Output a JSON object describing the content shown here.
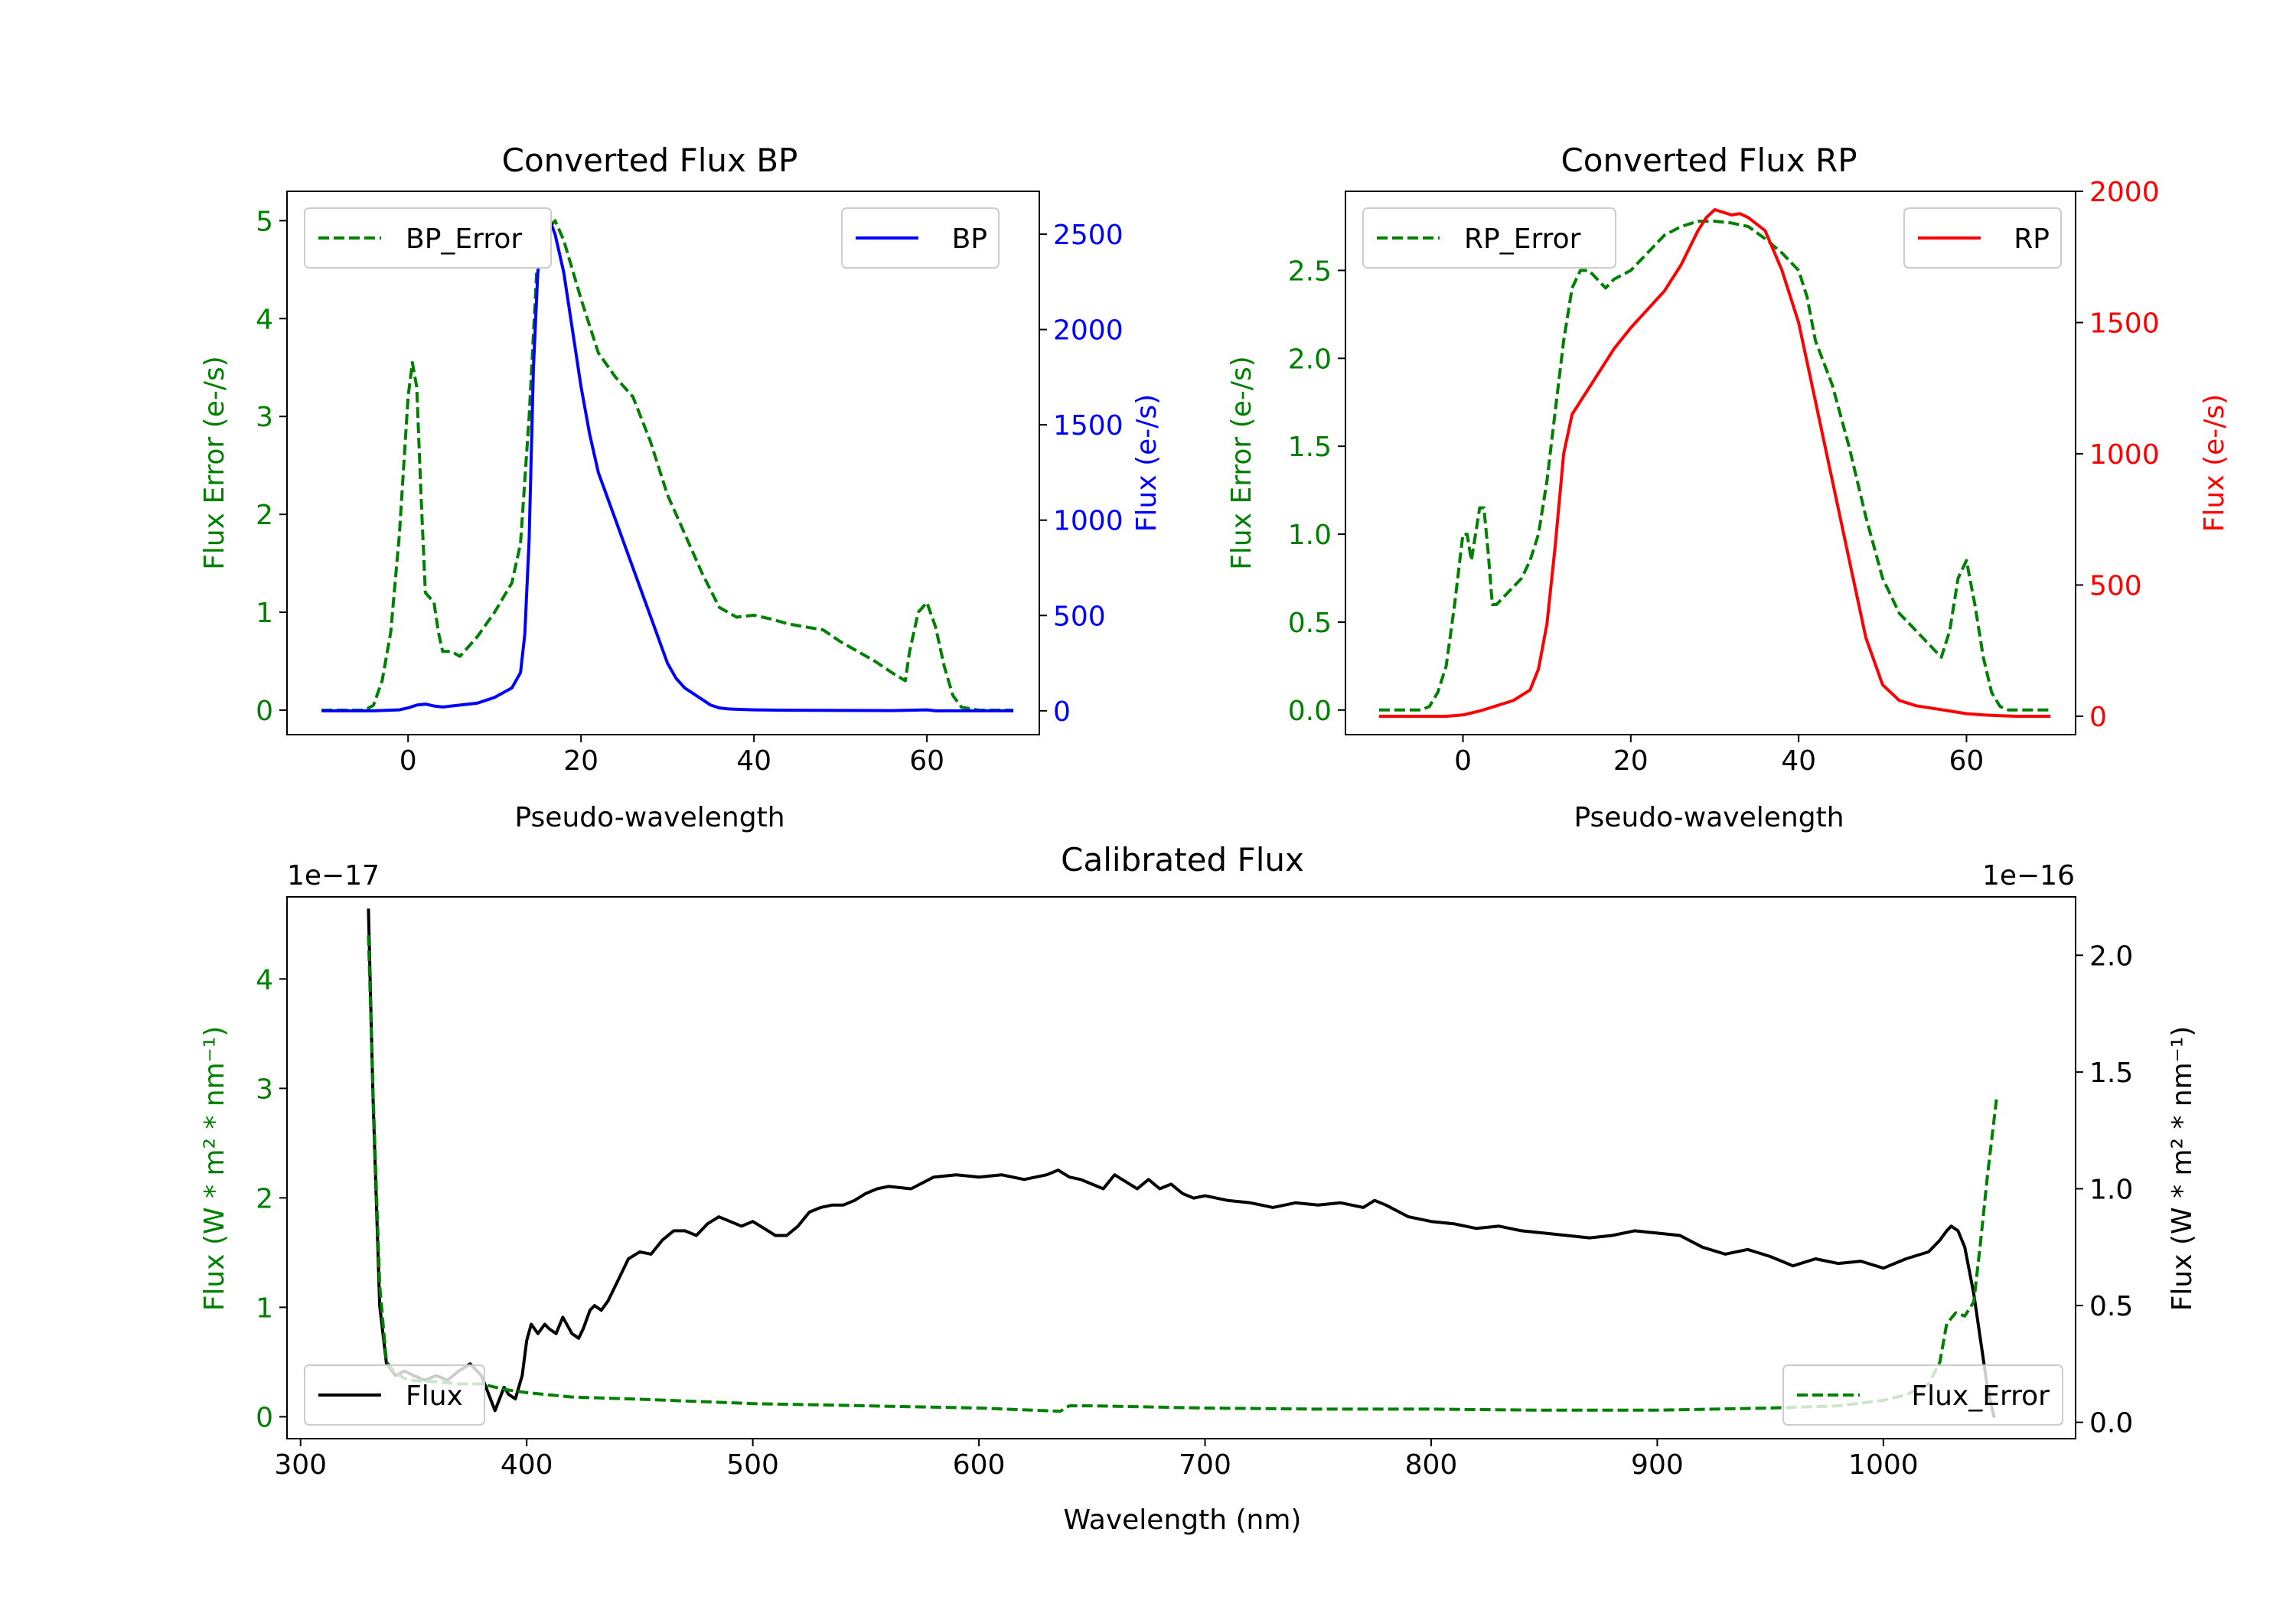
{
  "colors": {
    "bp": "#0000ff",
    "rp": "#ff0000",
    "error": "#008000",
    "flux": "#000000",
    "axis": "#000000",
    "legend_border": "#cccccc"
  },
  "chart_data": [
    {
      "id": "bp",
      "type": "line",
      "title": "Converted Flux BP",
      "xlabel": "Pseudo-wavelength",
      "ylabel_left": "Flux Error (e-/s)",
      "ylabel_right": "Flux (e-/s)",
      "xlim": [
        -14,
        73
      ],
      "xticks": [
        0,
        20,
        40,
        60
      ],
      "ylim_left": [
        -0.25,
        5.3
      ],
      "yticks_left": [
        0,
        1,
        2,
        3,
        4,
        5
      ],
      "ylim_right": [
        -125,
        2725
      ],
      "yticks_right": [
        0,
        500,
        1000,
        1500,
        2000,
        2500
      ],
      "legend_left": "BP_Error",
      "legend_right": "BP",
      "series": [
        {
          "name": "BP_Error",
          "axis": "left",
          "style": "dashed",
          "color": "#008000",
          "x": [
            -10,
            -5,
            -4,
            -3,
            -2,
            -1,
            0,
            0.5,
            1,
            1.5,
            2,
            3,
            3.5,
            4,
            5,
            6,
            7,
            8,
            10,
            12,
            13,
            14,
            15,
            16,
            17,
            18,
            20,
            22,
            24,
            26,
            28,
            30,
            32,
            34,
            36,
            38,
            40,
            42,
            44,
            46,
            48,
            50,
            52,
            54,
            56,
            57.5,
            58,
            59,
            60,
            61,
            62,
            63,
            64,
            66,
            70
          ],
          "values": [
            0,
            0,
            0.05,
            0.3,
            0.8,
            1.8,
            3.2,
            3.55,
            3.3,
            2.2,
            1.2,
            1.1,
            0.8,
            0.6,
            0.6,
            0.55,
            0.65,
            0.75,
            1.0,
            1.3,
            1.7,
            3.0,
            4.7,
            4.9,
            5.0,
            4.8,
            4.2,
            3.65,
            3.4,
            3.2,
            2.75,
            2.2,
            1.8,
            1.4,
            1.05,
            0.95,
            0.97,
            0.93,
            0.88,
            0.85,
            0.82,
            0.7,
            0.6,
            0.5,
            0.38,
            0.3,
            0.6,
            1.0,
            1.1,
            0.85,
            0.45,
            0.15,
            0.03,
            0,
            0
          ]
        },
        {
          "name": "BP",
          "axis": "right",
          "style": "solid",
          "color": "#0000ff",
          "x": [
            -10,
            -4,
            -1,
            0,
            1,
            2,
            3,
            4,
            6,
            8,
            10,
            12,
            13,
            13.5,
            14,
            14.5,
            15,
            15.5,
            16,
            17,
            18,
            19,
            20,
            21,
            22,
            24,
            26,
            28,
            30,
            31,
            32,
            34,
            35,
            36,
            37,
            38,
            40,
            44,
            50,
            56,
            60,
            61,
            62,
            70
          ],
          "values": [
            0,
            0,
            5,
            15,
            30,
            35,
            25,
            20,
            30,
            40,
            70,
            120,
            200,
            400,
            900,
            1800,
            2300,
            2520,
            2620,
            2500,
            2300,
            2000,
            1700,
            1450,
            1250,
            1000,
            750,
            500,
            250,
            170,
            120,
            60,
            30,
            15,
            10,
            8,
            5,
            3,
            2,
            1,
            5,
            0,
            0,
            0
          ]
        }
      ]
    },
    {
      "id": "rp",
      "type": "line",
      "title": "Converted Flux RP",
      "xlabel": "Pseudo-wavelength",
      "ylabel_left": "Flux Error (e-/s)",
      "ylabel_right": "Flux (e-/s)",
      "xlim": [
        -14,
        73
      ],
      "xticks": [
        0,
        20,
        40,
        60
      ],
      "ylim_left": [
        -0.14,
        2.95
      ],
      "yticks_left": [
        0.0,
        0.5,
        1.0,
        1.5,
        2.0,
        2.5
      ],
      "ylim_right": [
        -70,
        2000
      ],
      "yticks_right": [
        0,
        500,
        1000,
        1500,
        2000
      ],
      "legend_left": "RP_Error",
      "legend_right": "RP",
      "series": [
        {
          "name": "RP_Error",
          "axis": "left",
          "style": "dashed",
          "color": "#008000",
          "x": [
            -10,
            -5,
            -4,
            -3,
            -2,
            -1,
            0,
            0.5,
            1,
            1.5,
            2,
            2.5,
            3,
            3.5,
            4,
            5,
            6,
            7,
            8,
            9,
            10,
            11,
            12,
            13,
            14,
            15,
            16,
            17,
            18,
            20,
            22,
            24,
            26,
            28,
            30,
            32,
            34,
            36,
            38,
            40,
            41,
            42,
            44,
            46,
            48,
            50,
            52,
            54,
            56,
            57,
            58,
            59,
            60,
            61,
            62,
            63,
            64,
            65,
            66,
            70
          ],
          "values": [
            0,
            0,
            0.02,
            0.1,
            0.25,
            0.6,
            1.0,
            1.0,
            0.85,
            1.0,
            1.15,
            1.15,
            0.9,
            0.6,
            0.6,
            0.65,
            0.7,
            0.75,
            0.85,
            1.0,
            1.3,
            1.7,
            2.1,
            2.4,
            2.5,
            2.5,
            2.45,
            2.4,
            2.45,
            2.5,
            2.6,
            2.7,
            2.75,
            2.78,
            2.78,
            2.77,
            2.75,
            2.68,
            2.6,
            2.5,
            2.35,
            2.1,
            1.85,
            1.5,
            1.1,
            0.75,
            0.55,
            0.45,
            0.35,
            0.3,
            0.45,
            0.75,
            0.85,
            0.6,
            0.3,
            0.1,
            0.02,
            0,
            0,
            0
          ]
        },
        {
          "name": "RP",
          "axis": "right",
          "style": "solid",
          "color": "#ff0000",
          "x": [
            -10,
            -2,
            0,
            2,
            4,
            6,
            8,
            9,
            10,
            11,
            12,
            13,
            14,
            16,
            18,
            20,
            22,
            24,
            26,
            28,
            29,
            30,
            31,
            32,
            33,
            34,
            36,
            38,
            40,
            42,
            44,
            46,
            48,
            50,
            52,
            54,
            56,
            58,
            60,
            62,
            64,
            66,
            70
          ],
          "values": [
            0,
            0,
            5,
            20,
            40,
            60,
            100,
            180,
            350,
            650,
            1000,
            1150,
            1200,
            1300,
            1400,
            1480,
            1550,
            1620,
            1720,
            1850,
            1900,
            1930,
            1920,
            1910,
            1915,
            1900,
            1850,
            1700,
            1500,
            1200,
            900,
            600,
            300,
            120,
            60,
            40,
            30,
            20,
            10,
            5,
            2,
            0,
            0
          ]
        }
      ]
    },
    {
      "id": "calibrated",
      "type": "line",
      "title": "Calibrated Flux",
      "xlabel": "Wavelength (nm)",
      "ylabel_left": "Flux (W * m² * nm⁻¹)",
      "ylabel_right": "Flux (W * m² * nm⁻¹)",
      "offset_left": "1e−17",
      "offset_right": "1e−16",
      "xlim": [
        294,
        1085
      ],
      "xticks": [
        300,
        400,
        500,
        600,
        700,
        800,
        900,
        1000
      ],
      "ylim_left": [
        -0.2,
        4.75
      ],
      "yticks_left": [
        0,
        1,
        2,
        3,
        4
      ],
      "ylim_right": [
        -0.07,
        2.25
      ],
      "yticks_right": [
        0.0,
        0.5,
        1.0,
        1.5,
        2.0
      ],
      "legend_left": "Flux",
      "legend_right": "Flux_Error",
      "series": [
        {
          "name": "Flux",
          "axis": "right",
          "style": "solid",
          "color": "#000000",
          "x": [
            330,
            332,
            335,
            338,
            342,
            346,
            350,
            355,
            360,
            365,
            370,
            375,
            380,
            382,
            384,
            386,
            388,
            390,
            392,
            395,
            398,
            400,
            402,
            405,
            408,
            410,
            413,
            416,
            420,
            423,
            425,
            428,
            430,
            433,
            436,
            440,
            445,
            450,
            455,
            460,
            465,
            470,
            475,
            480,
            485,
            490,
            495,
            500,
            505,
            510,
            515,
            520,
            525,
            530,
            535,
            540,
            545,
            550,
            555,
            560,
            570,
            580,
            590,
            600,
            610,
            620,
            630,
            635,
            640,
            645,
            650,
            655,
            660,
            665,
            670,
            675,
            680,
            685,
            690,
            695,
            700,
            710,
            720,
            730,
            740,
            750,
            760,
            770,
            775,
            780,
            790,
            800,
            810,
            820,
            830,
            840,
            850,
            860,
            870,
            880,
            890,
            900,
            910,
            920,
            930,
            940,
            950,
            960,
            970,
            980,
            990,
            1000,
            1010,
            1020,
            1025,
            1028,
            1030,
            1033,
            1036,
            1040,
            1043,
            1046,
            1049
          ],
          "values": [
            2.2,
            1.4,
            0.5,
            0.25,
            0.2,
            0.22,
            0.2,
            0.18,
            0.2,
            0.18,
            0.22,
            0.25,
            0.2,
            0.15,
            0.1,
            0.05,
            0.1,
            0.15,
            0.12,
            0.1,
            0.2,
            0.35,
            0.42,
            0.38,
            0.42,
            0.4,
            0.38,
            0.45,
            0.38,
            0.36,
            0.4,
            0.48,
            0.5,
            0.48,
            0.52,
            0.6,
            0.7,
            0.73,
            0.72,
            0.78,
            0.82,
            0.82,
            0.8,
            0.85,
            0.88,
            0.86,
            0.84,
            0.86,
            0.83,
            0.8,
            0.8,
            0.84,
            0.9,
            0.92,
            0.93,
            0.93,
            0.95,
            0.98,
            1.0,
            1.01,
            1.0,
            1.05,
            1.06,
            1.05,
            1.06,
            1.04,
            1.06,
            1.08,
            1.05,
            1.04,
            1.02,
            1.0,
            1.06,
            1.03,
            1.0,
            1.04,
            1.0,
            1.02,
            0.98,
            0.96,
            0.97,
            0.95,
            0.94,
            0.92,
            0.94,
            0.93,
            0.94,
            0.92,
            0.95,
            0.93,
            0.88,
            0.86,
            0.85,
            0.83,
            0.84,
            0.82,
            0.81,
            0.8,
            0.79,
            0.8,
            0.82,
            0.81,
            0.8,
            0.75,
            0.72,
            0.74,
            0.71,
            0.67,
            0.7,
            0.68,
            0.69,
            0.66,
            0.7,
            0.73,
            0.78,
            0.82,
            0.84,
            0.82,
            0.75,
            0.55,
            0.35,
            0.15,
            0.02
          ]
        },
        {
          "name": "Flux_Error",
          "axis": "left",
          "style": "dashed",
          "color": "#008000",
          "x": [
            330,
            332,
            335,
            338,
            342,
            346,
            350,
            360,
            370,
            380,
            390,
            400,
            420,
            450,
            500,
            550,
            600,
            636,
            640,
            650,
            700,
            750,
            800,
            850,
            900,
            950,
            980,
            1000,
            1010,
            1020,
            1025,
            1028,
            1032,
            1036,
            1040,
            1043,
            1046,
            1050
          ],
          "values": [
            4.4,
            3.0,
            1.2,
            0.5,
            0.4,
            0.35,
            0.33,
            0.32,
            0.3,
            0.3,
            0.25,
            0.22,
            0.18,
            0.16,
            0.12,
            0.1,
            0.08,
            0.05,
            0.1,
            0.1,
            0.08,
            0.07,
            0.07,
            0.06,
            0.06,
            0.08,
            0.1,
            0.15,
            0.2,
            0.3,
            0.5,
            0.85,
            0.95,
            0.92,
            1.05,
            1.6,
            2.2,
            2.9
          ]
        }
      ]
    }
  ]
}
